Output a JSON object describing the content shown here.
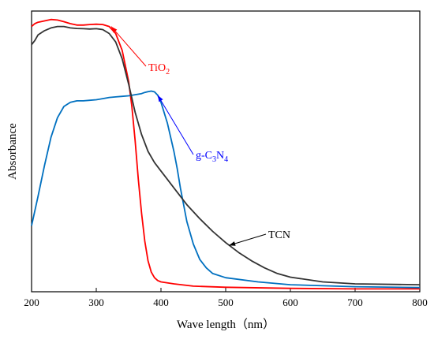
{
  "chart_data": {
    "type": "line",
    "xlabel": "Wave length（nm）",
    "ylabel": "Absorbance",
    "xlim": [
      200,
      800
    ],
    "ylim": [
      0,
      1.0
    ],
    "x_ticks": [
      200,
      300,
      400,
      500,
      600,
      700,
      800
    ],
    "x_tick_labels": [
      "200",
      "300",
      "400",
      "500",
      "600",
      "700",
      "800"
    ],
    "y_ticks_shown": false,
    "grid": false,
    "legend": "none (curves identified by arrow annotations)",
    "series": [
      {
        "name": "TiO2",
        "color": "#ff0000",
        "points": [
          [
            200,
            0.945
          ],
          [
            205,
            0.955
          ],
          [
            210,
            0.96
          ],
          [
            220,
            0.965
          ],
          [
            230,
            0.97
          ],
          [
            240,
            0.968
          ],
          [
            250,
            0.962
          ],
          [
            260,
            0.955
          ],
          [
            270,
            0.95
          ],
          [
            280,
            0.95
          ],
          [
            290,
            0.952
          ],
          [
            300,
            0.953
          ],
          [
            310,
            0.952
          ],
          [
            320,
            0.945
          ],
          [
            330,
            0.92
          ],
          [
            340,
            0.86
          ],
          [
            350,
            0.75
          ],
          [
            355,
            0.66
          ],
          [
            360,
            0.54
          ],
          [
            365,
            0.4
          ],
          [
            370,
            0.28
          ],
          [
            375,
            0.18
          ],
          [
            380,
            0.11
          ],
          [
            385,
            0.07
          ],
          [
            390,
            0.05
          ],
          [
            395,
            0.04
          ],
          [
            400,
            0.035
          ],
          [
            420,
            0.028
          ],
          [
            450,
            0.02
          ],
          [
            500,
            0.016
          ],
          [
            600,
            0.012
          ],
          [
            700,
            0.01
          ],
          [
            800,
            0.01
          ]
        ]
      },
      {
        "name": "g-C3N4",
        "color": "#0070c0",
        "points": [
          [
            200,
            0.235
          ],
          [
            210,
            0.34
          ],
          [
            220,
            0.45
          ],
          [
            230,
            0.55
          ],
          [
            240,
            0.62
          ],
          [
            250,
            0.66
          ],
          [
            260,
            0.675
          ],
          [
            270,
            0.68
          ],
          [
            280,
            0.68
          ],
          [
            290,
            0.682
          ],
          [
            300,
            0.684
          ],
          [
            310,
            0.688
          ],
          [
            320,
            0.692
          ],
          [
            330,
            0.694
          ],
          [
            340,
            0.696
          ],
          [
            350,
            0.698
          ],
          [
            360,
            0.702
          ],
          [
            370,
            0.706
          ],
          [
            375,
            0.71
          ],
          [
            380,
            0.713
          ],
          [
            385,
            0.715
          ],
          [
            390,
            0.712
          ],
          [
            395,
            0.7
          ],
          [
            400,
            0.675
          ],
          [
            410,
            0.6
          ],
          [
            420,
            0.5
          ],
          [
            425,
            0.44
          ],
          [
            430,
            0.37
          ],
          [
            440,
            0.25
          ],
          [
            450,
            0.17
          ],
          [
            460,
            0.115
          ],
          [
            470,
            0.085
          ],
          [
            480,
            0.065
          ],
          [
            500,
            0.05
          ],
          [
            550,
            0.035
          ],
          [
            600,
            0.025
          ],
          [
            700,
            0.018
          ],
          [
            800,
            0.015
          ]
        ]
      },
      {
        "name": "TCN",
        "color": "#333333",
        "points": [
          [
            200,
            0.88
          ],
          [
            205,
            0.895
          ],
          [
            210,
            0.915
          ],
          [
            220,
            0.93
          ],
          [
            230,
            0.94
          ],
          [
            240,
            0.945
          ],
          [
            250,
            0.945
          ],
          [
            260,
            0.94
          ],
          [
            270,
            0.938
          ],
          [
            280,
            0.937
          ],
          [
            290,
            0.936
          ],
          [
            300,
            0.937
          ],
          [
            310,
            0.934
          ],
          [
            320,
            0.92
          ],
          [
            330,
            0.89
          ],
          [
            340,
            0.83
          ],
          [
            350,
            0.74
          ],
          [
            360,
            0.64
          ],
          [
            370,
            0.56
          ],
          [
            380,
            0.5
          ],
          [
            390,
            0.46
          ],
          [
            400,
            0.43
          ],
          [
            410,
            0.4
          ],
          [
            420,
            0.37
          ],
          [
            440,
            0.31
          ],
          [
            460,
            0.26
          ],
          [
            480,
            0.215
          ],
          [
            500,
            0.175
          ],
          [
            520,
            0.14
          ],
          [
            540,
            0.11
          ],
          [
            560,
            0.085
          ],
          [
            580,
            0.065
          ],
          [
            600,
            0.052
          ],
          [
            650,
            0.035
          ],
          [
            700,
            0.028
          ],
          [
            800,
            0.025
          ]
        ]
      }
    ],
    "annotations": [
      {
        "text": "TiO",
        "sub": "2",
        "color": "#ff0000",
        "arrow_to": [
          323,
          0.945
        ]
      },
      {
        "text": "g-C",
        "sub1": "3",
        "mid": "N",
        "sub2": "4",
        "color": "#0000ff",
        "arrow_to": [
          395,
          0.7
        ]
      },
      {
        "text": "TCN",
        "color": "#000000",
        "arrow_to": [
          505,
          0.165
        ]
      }
    ]
  }
}
